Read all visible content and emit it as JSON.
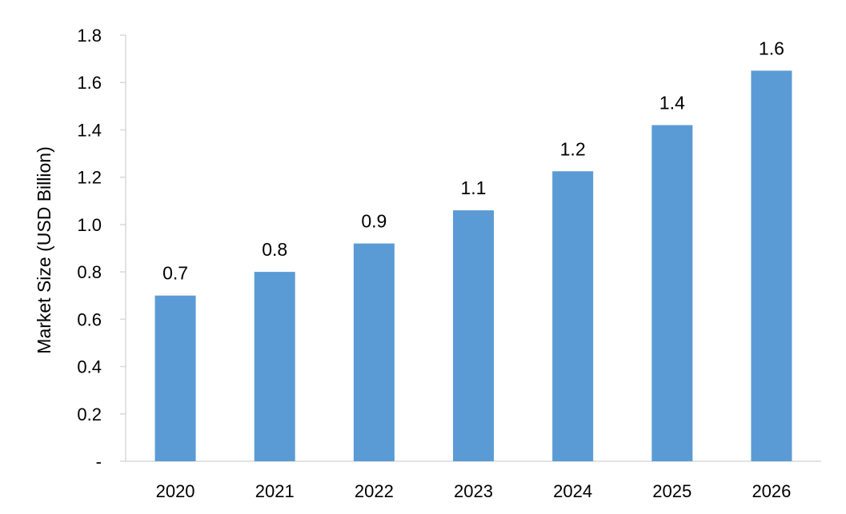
{
  "chart_data": {
    "type": "bar",
    "title": "",
    "xlabel": "",
    "ylabel": "Market Size (USD Billion)",
    "categories": [
      "2020",
      "2021",
      "2022",
      "2023",
      "2024",
      "2025",
      "2026"
    ],
    "values": [
      0.7,
      0.8,
      0.92,
      1.06,
      1.225,
      1.42,
      1.65
    ],
    "data_labels": [
      "0.7",
      "0.8",
      "0.9",
      "1.1",
      "1.2",
      "1.4",
      "1.6"
    ],
    "ylim": [
      0,
      1.8
    ],
    "yticks": [
      0,
      0.2,
      0.4,
      0.6,
      0.8,
      1.0,
      1.2,
      1.4,
      1.6,
      1.8
    ],
    "ytick_labels": [
      "-",
      "0.2",
      "0.4",
      "0.6",
      "0.8",
      "1.0",
      "1.2",
      "1.4",
      "1.6",
      "1.8"
    ],
    "grid": false,
    "legend": "none",
    "colors": {
      "bar": "#5b9bd5",
      "axis": "#d9d9d9",
      "text": "#000000"
    }
  }
}
